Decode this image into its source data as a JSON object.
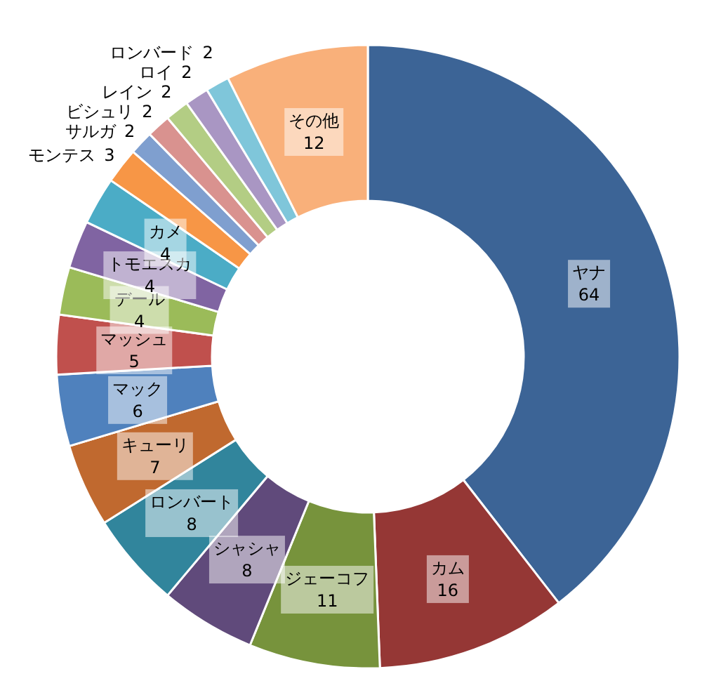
{
  "chart_data": {
    "type": "donut",
    "categories": [
      "ヤナ",
      "カム",
      "ジェーコフ",
      "シャシャ",
      "ロンバート",
      "キューリ",
      "マック",
      "マッシュ",
      "デール",
      "トモエスカ",
      "カメ",
      "モンテス",
      "サルガ",
      "ビシュリ",
      "レイン",
      "ロイ",
      "ロンバード",
      "その他"
    ],
    "values": [
      64,
      16,
      11,
      8,
      8,
      7,
      6,
      5,
      4,
      4,
      4,
      3,
      2,
      2,
      2,
      2,
      2,
      12
    ],
    "colors": [
      "#3c6496",
      "#953735",
      "#77933c",
      "#604a7b",
      "#31859c",
      "#c0692f",
      "#4f81bd",
      "#c0504d",
      "#9bbb59",
      "#8064a2",
      "#4bacc6",
      "#f79646",
      "#7f9fcf",
      "#d9928f",
      "#b3cd84",
      "#a996c3",
      "#7fc6da",
      "#f9b07a"
    ],
    "data_labels": true
  }
}
